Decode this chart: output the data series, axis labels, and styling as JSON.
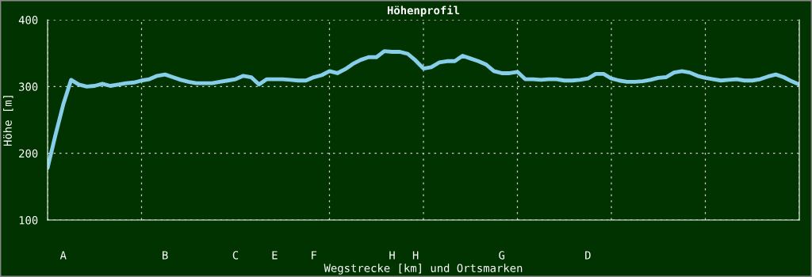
{
  "chart_data": {
    "type": "line",
    "title": "Höhenprofil",
    "xlabel": "Wegstrecke [km] und Ortsmarken",
    "ylabel": "Höhe [m]",
    "categories": [
      null,
      null,
      "A",
      null,
      null,
      null,
      null,
      null,
      null,
      null,
      null,
      null,
      null,
      null,
      null,
      "B",
      null,
      null,
      null,
      null,
      null,
      null,
      null,
      null,
      "C",
      null,
      null,
      null,
      null,
      "E",
      null,
      null,
      null,
      null,
      "F",
      null,
      null,
      null,
      null,
      null,
      null,
      null,
      null,
      null,
      "H",
      null,
      null,
      "H",
      null,
      null,
      null,
      null,
      null,
      null,
      null,
      null,
      null,
      null,
      "G",
      null,
      null,
      null,
      null,
      null,
      null,
      null,
      null,
      null,
      null,
      "D",
      null,
      null,
      null,
      null,
      null,
      null,
      null,
      null,
      null,
      null,
      null,
      null,
      null,
      null,
      null,
      null,
      null,
      null,
      null,
      null,
      null,
      null,
      null,
      null,
      null,
      null,
      null
    ],
    "series": [
      {
        "color": "#87ceeb",
        "values": [
          178,
          227,
          273,
          310,
          303,
          300,
          301,
          304,
          301,
          303,
          305,
          306,
          309,
          311,
          316,
          318,
          314,
          310,
          307,
          305,
          305,
          305,
          307,
          309,
          311,
          316,
          314,
          303,
          311,
          311,
          311,
          310,
          309,
          309,
          314,
          317,
          323,
          320,
          326,
          334,
          340,
          344,
          344,
          353,
          352,
          352,
          349,
          339,
          327,
          329,
          336,
          338,
          338,
          346,
          342,
          338,
          333,
          323,
          320,
          320,
          322,
          311,
          311,
          310,
          311,
          311,
          309,
          309,
          310,
          312,
          319,
          319,
          312,
          309,
          307,
          307,
          308,
          310,
          313,
          314,
          321,
          323,
          321,
          316,
          313,
          311,
          309,
          310,
          311,
          309,
          309,
          311,
          315,
          318,
          314,
          308,
          303
        ]
      }
    ],
    "ylim": [
      100,
      400
    ],
    "yticks": [
      100,
      200,
      300,
      400
    ],
    "grid": true,
    "marker": "none",
    "line_style": "solid"
  }
}
